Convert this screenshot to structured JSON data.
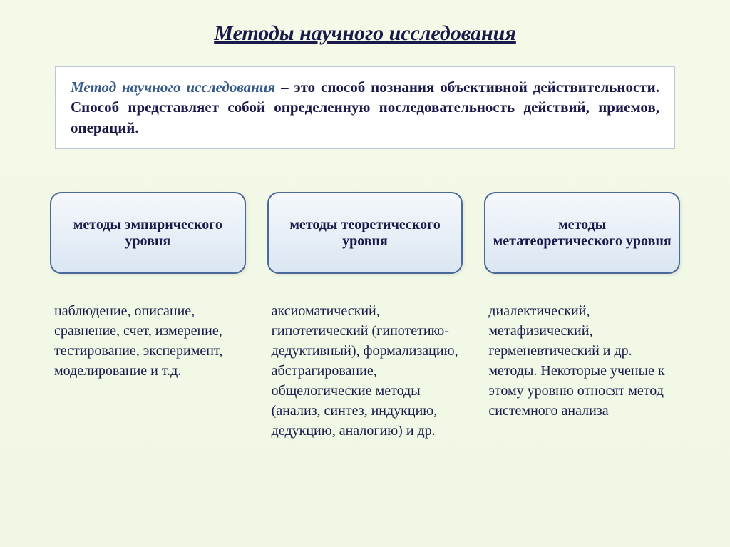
{
  "page": {
    "title": "Методы научного исследования",
    "background_colors": [
      "#f4f9e8",
      "#f0f7e4"
    ]
  },
  "definition": {
    "keyword": "Метод научного исследования",
    "rest": " – это способ познания объективной действительности. Способ представляет собой определенную последовательность действий, приемов, операций.",
    "box_bg": "#ffffff",
    "box_border": "#b8c8d8",
    "keyword_color": "#355a8a",
    "text_color": "#1a1a4a",
    "fontsize": 21
  },
  "boxes": {
    "bg_gradient": [
      "#f5f8fc",
      "#e8eff7",
      "#dae6f2"
    ],
    "border_color": "#4a6a9a",
    "border_radius": 16,
    "fontsize": 20,
    "text_color": "#1a1a4a"
  },
  "columns": [
    {
      "header": "методы эмпирического уровня",
      "list": "наблюдение, описание, сравнение, счет, измерение, тестирование, эксперимент, моделирование и т.д."
    },
    {
      "header": "методы теоретического уровня",
      "list": "аксиоматический, гипотетический (гипотетико-дедуктивный), формализацию, абстрагирование, общелогические методы (анализ, синтез, индукцию, дедукцию, аналогию) и др."
    },
    {
      "header": "методы метатеоретического уровня",
      "list": "диалектический, метафизический, герменевтический и др. методы. Некоторые ученые к этому уровню относят метод системного анализа"
    }
  ],
  "list_style": {
    "fontsize": 20,
    "text_color": "#1a1a4a",
    "line_height": 1.4
  }
}
